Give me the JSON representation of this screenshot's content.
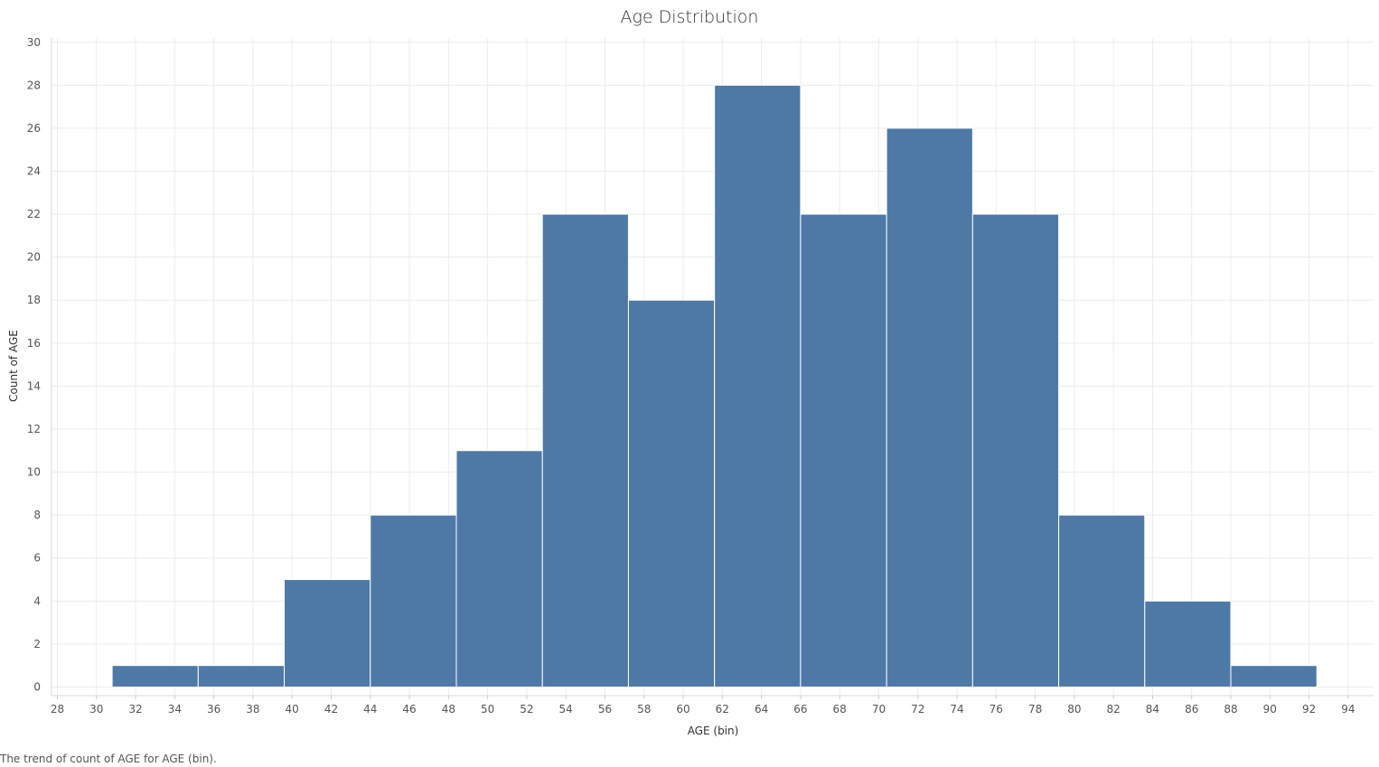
{
  "caption": "The trend of count of AGE for AGE (bin).",
  "chart_data": {
    "type": "bar",
    "title": "Age Distribution",
    "xlabel": "AGE (bin)",
    "ylabel": "Count of AGE",
    "bin_width": 4.4,
    "bins": [
      {
        "start": 30.8,
        "end": 35.2,
        "count": 1
      },
      {
        "start": 35.2,
        "end": 39.6,
        "count": 1
      },
      {
        "start": 39.6,
        "end": 44.0,
        "count": 5
      },
      {
        "start": 44.0,
        "end": 48.4,
        "count": 8
      },
      {
        "start": 48.4,
        "end": 52.8,
        "count": 11
      },
      {
        "start": 52.8,
        "end": 57.2,
        "count": 22
      },
      {
        "start": 57.2,
        "end": 61.6,
        "count": 18
      },
      {
        "start": 61.6,
        "end": 66.0,
        "count": 28
      },
      {
        "start": 66.0,
        "end": 70.4,
        "count": 22
      },
      {
        "start": 70.4,
        "end": 74.8,
        "count": 26
      },
      {
        "start": 74.8,
        "end": 79.2,
        "count": 22
      },
      {
        "start": 79.2,
        "end": 83.6,
        "count": 8
      },
      {
        "start": 83.6,
        "end": 88.0,
        "count": 4
      },
      {
        "start": 88.0,
        "end": 92.4,
        "count": 1
      }
    ],
    "xlim": [
      27.7,
      95.3
    ],
    "ylim": [
      -0.4,
      30.2
    ],
    "xticks": [
      28,
      30,
      32,
      34,
      36,
      38,
      40,
      42,
      44,
      46,
      48,
      50,
      52,
      54,
      56,
      58,
      60,
      62,
      64,
      66,
      68,
      70,
      72,
      74,
      76,
      78,
      80,
      82,
      84,
      86,
      88,
      90,
      92,
      94
    ],
    "yticks": [
      0,
      2,
      4,
      6,
      8,
      10,
      12,
      14,
      16,
      18,
      20,
      22,
      24,
      26,
      28,
      30
    ],
    "grid": true,
    "bar_color": "#4e79a7"
  }
}
